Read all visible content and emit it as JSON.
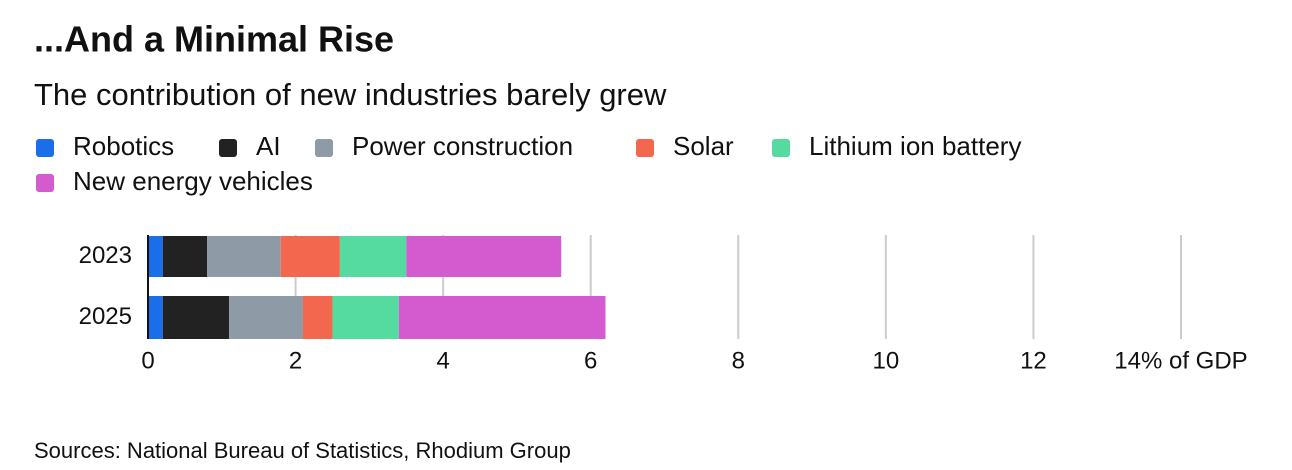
{
  "chart_data": {
    "type": "stacked-barh",
    "title": "...And a Minimal Rise",
    "subtitle": "The contribution of new industries barely grew",
    "source": "Sources: National Bureau of Statistics, Rhodium Group",
    "categories": [
      "2023",
      "2025"
    ],
    "series": [
      {
        "name": "Robotics",
        "color": "#1a6fe8",
        "values": [
          0.2,
          0.2
        ]
      },
      {
        "name": "AI",
        "color": "#222222",
        "values": [
          0.6,
          0.9
        ]
      },
      {
        "name": "Power construction",
        "color": "#8e9aa6",
        "values": [
          1.0,
          1.0
        ]
      },
      {
        "name": "Solar",
        "color": "#f2674d",
        "values": [
          0.8,
          0.4
        ]
      },
      {
        "name": "Lithium ion battery",
        "color": "#55dba0",
        "values": [
          0.9,
          0.9
        ]
      },
      {
        "name": "New energy vehicles",
        "color": "#d45ad0",
        "values": [
          2.1,
          2.8
        ]
      }
    ],
    "xlim": [
      0,
      14
    ],
    "xticks": [
      0,
      2,
      4,
      6,
      8,
      10,
      12,
      {
        "value": 14,
        "label": "14% of GDP"
      }
    ],
    "grid": true
  }
}
